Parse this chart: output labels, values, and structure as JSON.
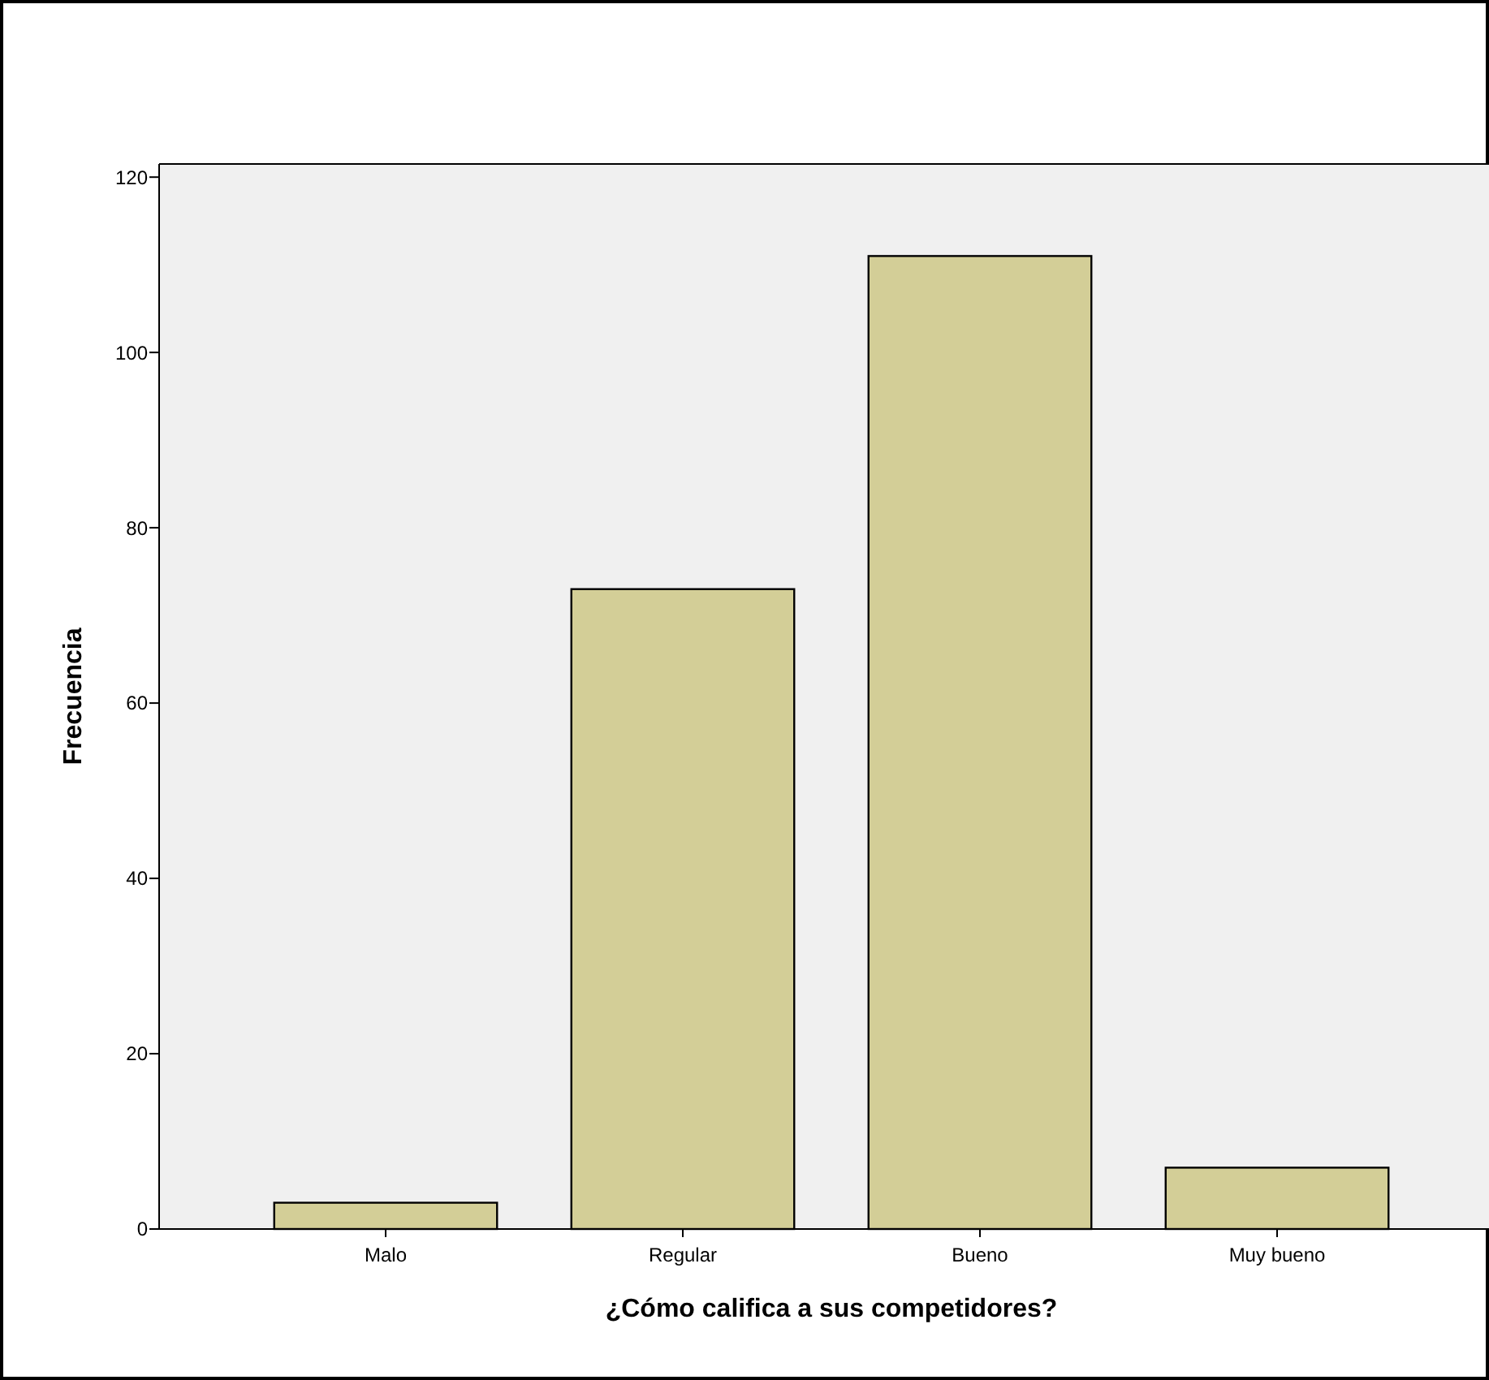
{
  "chart_data": {
    "type": "bar",
    "xlabel": "¿Cómo califica a sus competidores?",
    "ylabel": "Frecuencia",
    "categories": [
      "Malo",
      "Regular",
      "Bueno",
      "Muy bueno"
    ],
    "values": [
      3,
      73,
      111,
      7
    ],
    "color": "#d3ce97",
    "ylim": [
      0,
      121.5
    ],
    "yticks": [
      0,
      20,
      40,
      60,
      80,
      100,
      120
    ]
  }
}
